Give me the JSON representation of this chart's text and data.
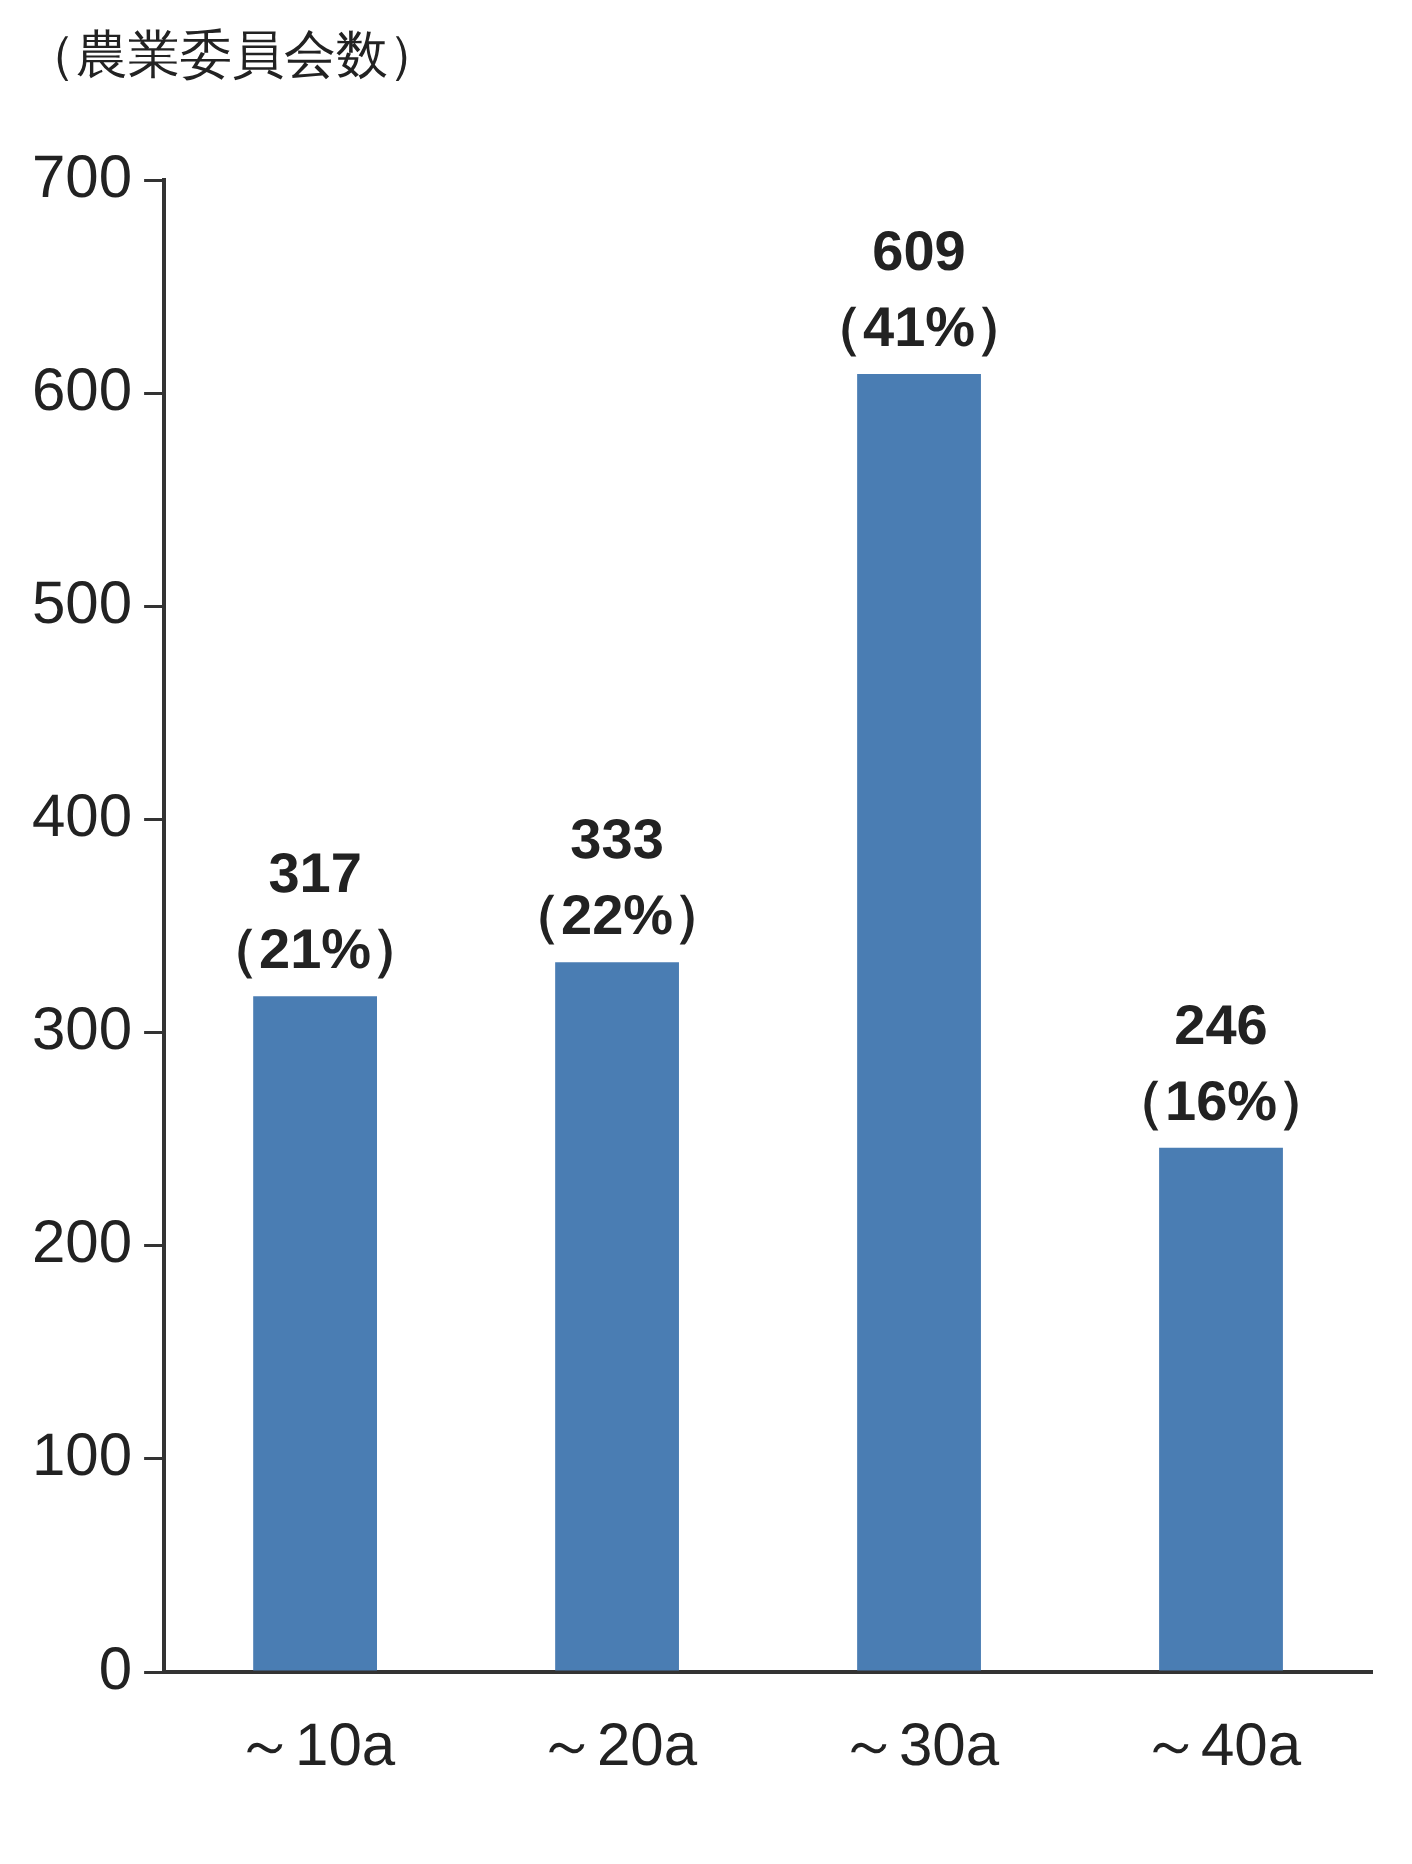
{
  "chart_data": {
    "type": "bar",
    "ylabel": "（農業委員会数）",
    "categories": [
      "～10a",
      "～20a",
      "～30a",
      "～40a"
    ],
    "values": [
      317,
      333,
      609,
      246
    ],
    "value_labels": [
      "317\n（21%）",
      "333\n（22%）",
      "609\n（41%）",
      "246\n（16%）"
    ],
    "color": "#4a7db3",
    "ylim": [
      0,
      700
    ],
    "yticks": [
      0,
      100,
      200,
      300,
      400,
      500,
      600,
      700
    ],
    "grid": false,
    "legend": false
  }
}
